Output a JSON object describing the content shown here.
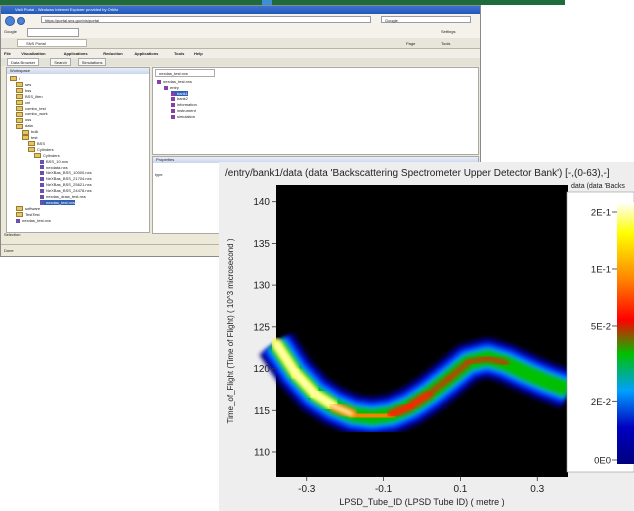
{
  "browser": {
    "title": "VisIt Portal - Windows Internet Explorer provided by Orbitz",
    "address": "https://portal.sns.gov/vis/portal",
    "search_placeholder": "Google",
    "google_label": "Google",
    "tab_label": "SNS Portal",
    "page_label": "Page",
    "tools_label": "Tools",
    "settings_label": "Settings"
  },
  "app_menu": [
    "File",
    "Visualization",
    "Applications",
    "Reduction",
    "Applications",
    "Tools",
    "Help"
  ],
  "subtabs": [
    "Data Browser",
    "Search",
    "Simulations"
  ],
  "workspace": {
    "header": "Workspace",
    "tree": [
      {
        "label": "/",
        "indent": 0,
        "type": "folder"
      },
      {
        "label": "ses",
        "indent": 1,
        "type": "folder"
      },
      {
        "label": "bss",
        "indent": 1,
        "type": "folder"
      },
      {
        "label": "BSS_liten",
        "indent": 1,
        "type": "folder"
      },
      {
        "label": "cnl",
        "indent": 1,
        "type": "folder"
      },
      {
        "label": "combo_test",
        "indent": 1,
        "type": "folder"
      },
      {
        "label": "combo_work",
        "indent": 1,
        "type": "folder"
      },
      {
        "label": "oss",
        "indent": 1,
        "type": "folder"
      },
      {
        "label": "data",
        "indent": 1,
        "type": "folder"
      },
      {
        "label": "bulk",
        "indent": 2,
        "type": "folder"
      },
      {
        "label": "test",
        "indent": 2,
        "type": "folder"
      },
      {
        "label": "BSS",
        "indent": 3,
        "type": "folder"
      },
      {
        "label": "Cylinders",
        "indent": 3,
        "type": "folder"
      },
      {
        "label": "Cylinders",
        "indent": 4,
        "type": "folder"
      },
      {
        "label": "BSS_10.nxs",
        "indent": 5,
        "type": "file"
      },
      {
        "label": "nexdata.nxs",
        "indent": 5,
        "type": "file"
      },
      {
        "label": "NeXBas_BSS_10000.nxs",
        "indent": 5,
        "type": "file"
      },
      {
        "label": "NeXBas_BSS_21704.nxs",
        "indent": 5,
        "type": "file"
      },
      {
        "label": "NeXBas_BSS_25621.nxs",
        "indent": 5,
        "type": "file"
      },
      {
        "label": "NeXBas_BSS_24478.nxs",
        "indent": 5,
        "type": "file"
      },
      {
        "label": "nexdas_draw_test.nxs",
        "indent": 5,
        "type": "file"
      },
      {
        "label": "nexdas_test.nxs",
        "indent": 5,
        "type": "file",
        "selected": true
      },
      {
        "label": "software",
        "indent": 1,
        "type": "folder"
      },
      {
        "label": "TestTest",
        "indent": 1,
        "type": "folder"
      },
      {
        "label": "nexdas_test.nxs",
        "indent": 1,
        "type": "file"
      }
    ],
    "footer": "Selection"
  },
  "file_view": {
    "tab_label": "nexdas_test.nxs",
    "tree": [
      {
        "label": "nexdas_test.nxs",
        "indent": 0
      },
      {
        "label": "entry",
        "indent": 1
      },
      {
        "label": "bank1",
        "indent": 2,
        "selected": true
      },
      {
        "label": "bank2",
        "indent": 2
      },
      {
        "label": "information",
        "indent": 2
      },
      {
        "label": "instrument",
        "indent": 2
      },
      {
        "label": "simulation",
        "indent": 2
      }
    ]
  },
  "properties": {
    "header": "Properties",
    "columns": [
      "Attribute",
      "Value"
    ],
    "row_label": "type"
  },
  "status_text": "Done",
  "plot": {
    "title": "/entry/bank1/data (data 'Backscattering Spectrometer Upper Detector Bank') [-,(0-63),-]",
    "colorbar_title": "data (data 'Backs",
    "chart_data": {
      "type": "heatmap",
      "xlabel": "LPSD_Tube_ID (LPSD Tube ID)  ( metre )",
      "ylabel": "Time_of_Flight (Time of Flight)  ( 10^3 microsecond )",
      "xlim": [
        -0.38,
        0.38
      ],
      "ylim": [
        107,
        142
      ],
      "x_ticks": [
        "-0.3",
        "-0.1",
        "0.1",
        "0.3"
      ],
      "x_tick_values": [
        -0.3,
        -0.1,
        0.1,
        0.3
      ],
      "y_ticks": [
        "110",
        "115",
        "120",
        "125",
        "130",
        "135",
        "140"
      ],
      "y_tick_values": [
        110,
        115,
        120,
        125,
        130,
        135,
        140
      ],
      "ridge": {
        "x": [
          -0.38,
          -0.33,
          -0.28,
          -0.23,
          -0.18,
          -0.13,
          -0.08,
          -0.03,
          0.02,
          0.07,
          0.12,
          0.17,
          0.22,
          0.27,
          0.32,
          0.38
        ],
        "y": [
          123,
          119.5,
          117,
          115.5,
          114.5,
          114.2,
          114.5,
          115.5,
          117,
          118.8,
          120.7,
          121.3,
          120.6,
          119.5,
          118.5,
          117.5
        ],
        "peak_intensity": [
          1.0,
          0.95,
          0.9,
          0.85,
          0.8,
          0.75,
          0.65,
          0.55,
          0.45,
          0.4,
          0.45,
          0.4,
          0.3,
          0.2,
          0.15,
          0.1
        ]
      },
      "colorbar": {
        "scale": "log",
        "tick_labels": [
          "2E-1",
          "1E-1",
          "5E-2",
          "2E-2",
          "0E0"
        ],
        "tick_values": [
          0.2,
          0.1,
          0.05,
          0.02,
          0
        ],
        "colors": [
          "#ffffff",
          "#ffff00",
          "#ff8000",
          "#ff0000",
          "#00c000",
          "#00a0ff",
          "#0000c0",
          "#000080"
        ]
      }
    }
  }
}
